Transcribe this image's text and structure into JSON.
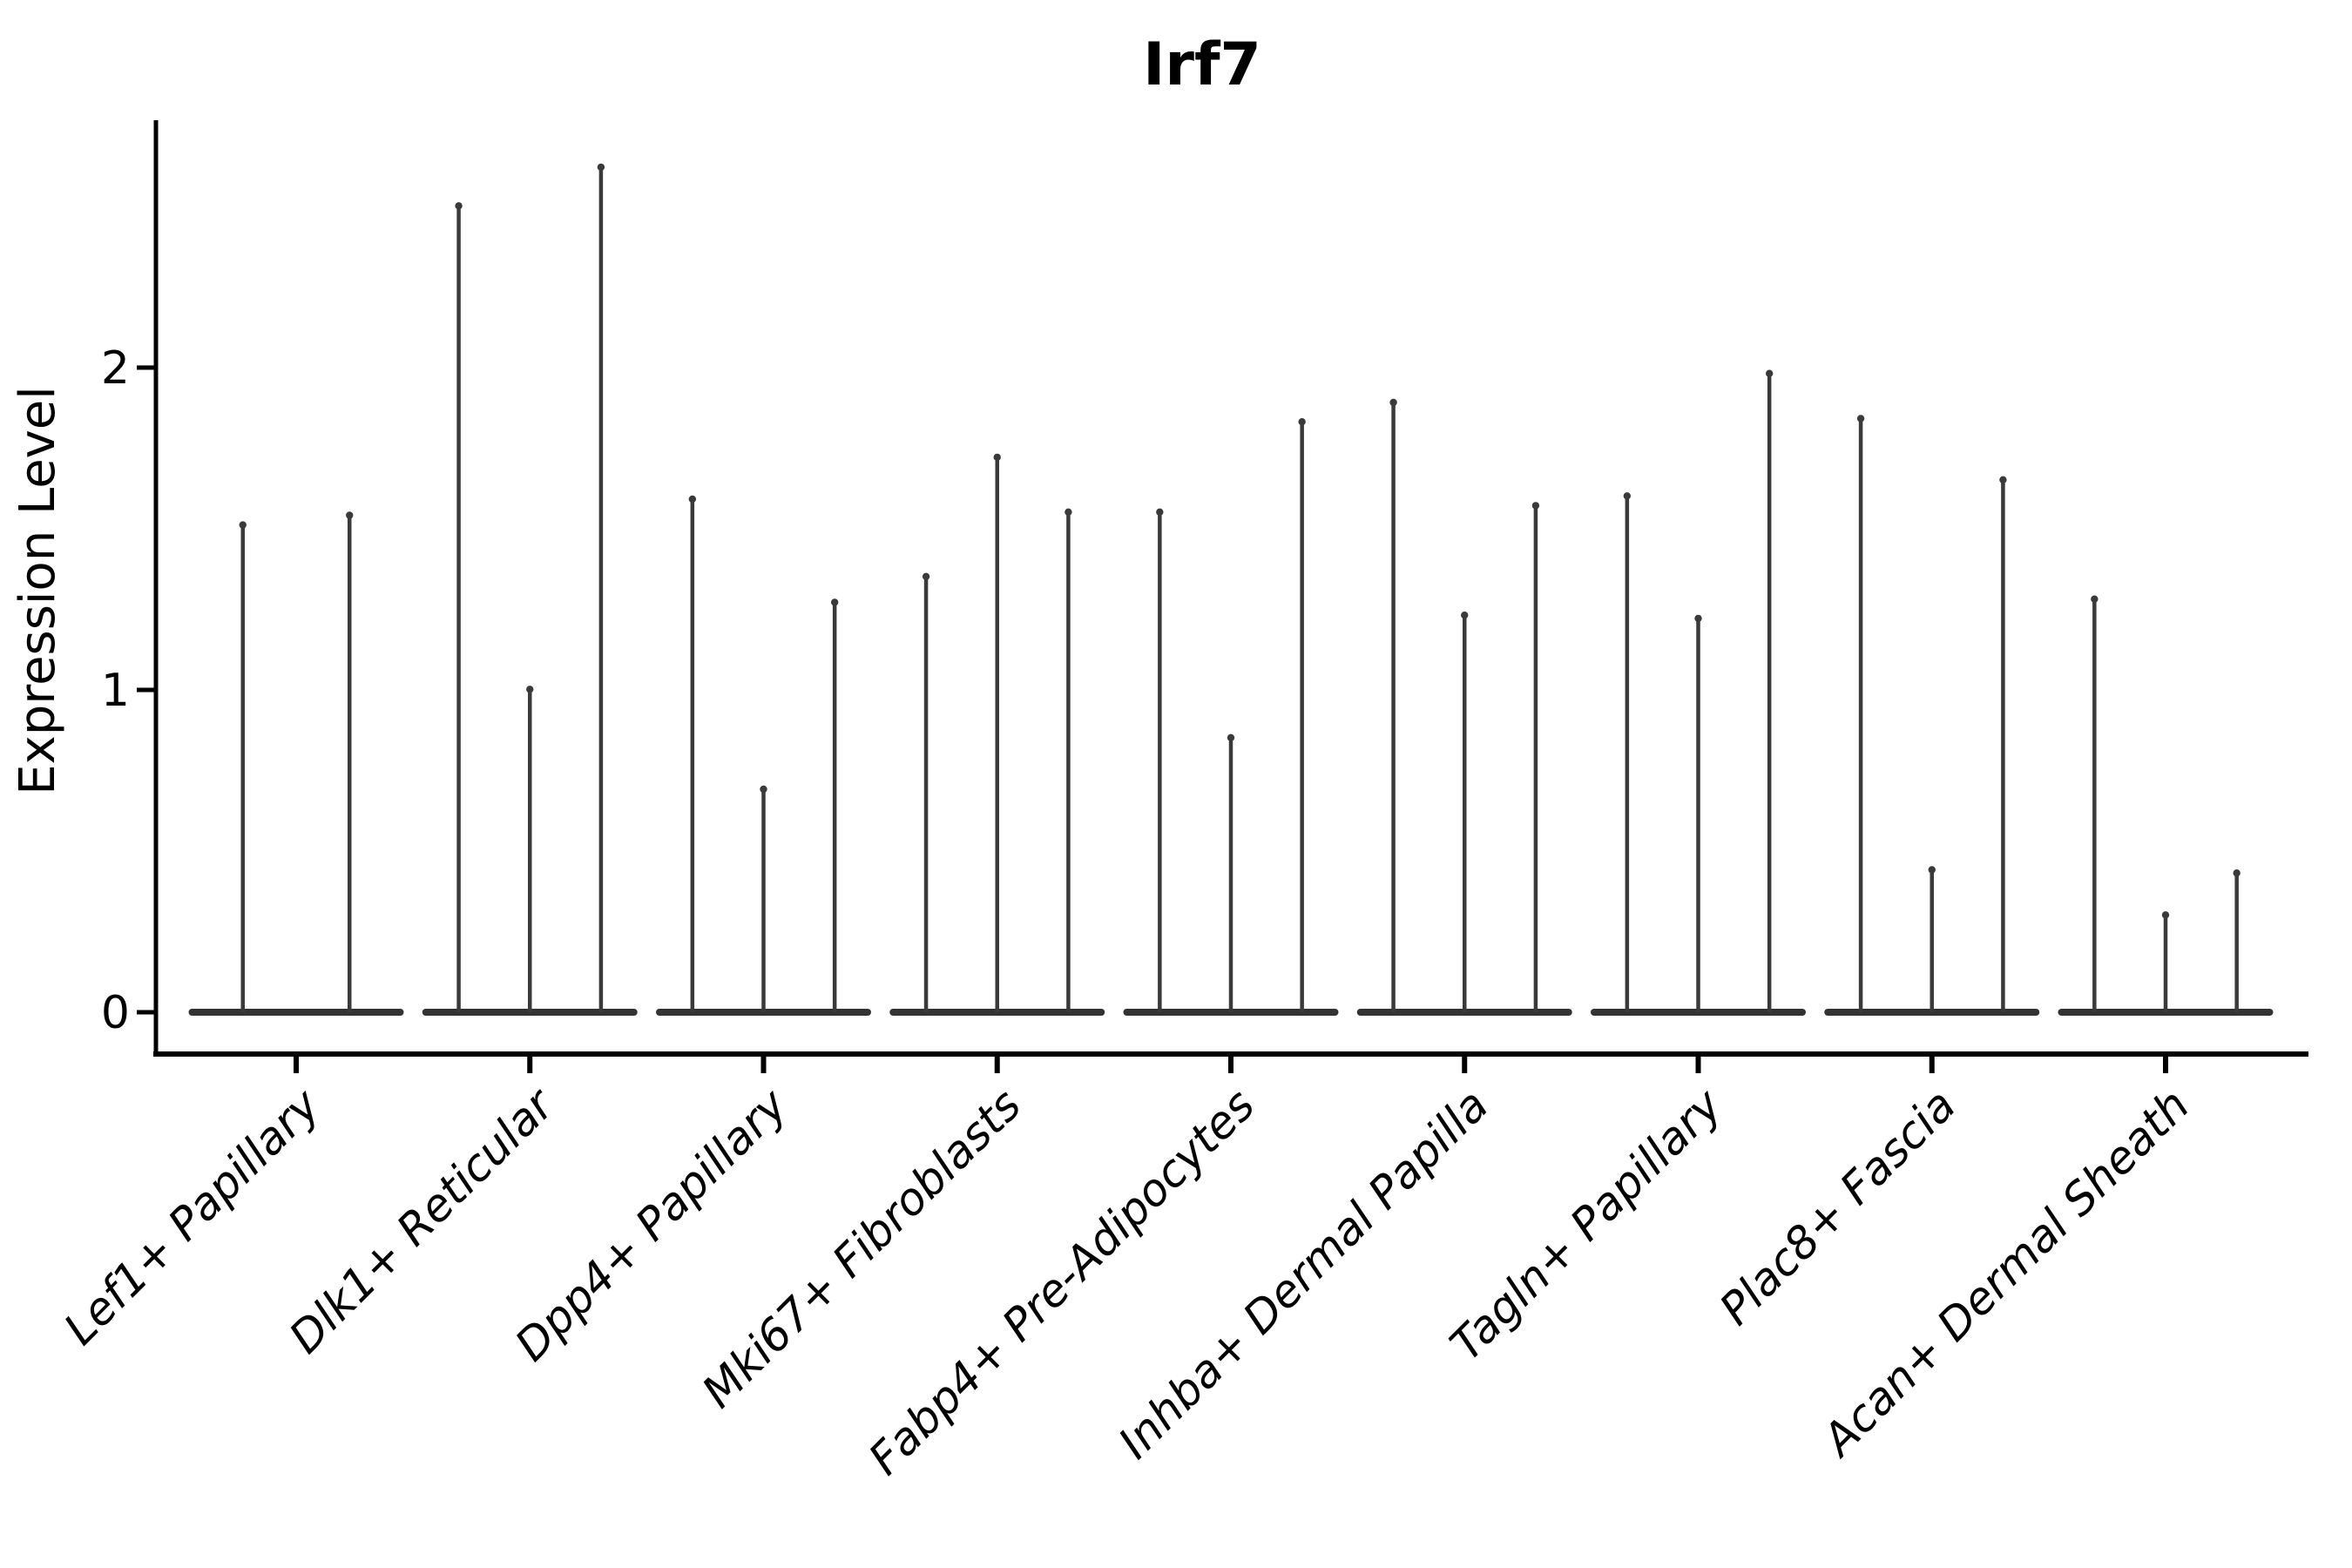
{
  "page": {
    "title": "Irf7"
  },
  "chart_data": {
    "type": "violin",
    "title": "Irf7",
    "xlabel": "",
    "ylabel": "Expression Level",
    "yticks": [
      0,
      1,
      2
    ],
    "ylim": [
      0,
      2.76
    ],
    "grid": false,
    "legend": "none",
    "x_tick_rotation_deg": 45,
    "categories": [
      "Lef1+ Papillary",
      "Dlk1+ Reticular",
      "Dpp4+ Papillary",
      "Mki67+ Fibroblasts",
      "Fabp4+ Pre-Adipocytes",
      "Inhba+ Dermal Papilla",
      "Tagln+ Papillary",
      "Plac8+ Fascia",
      "Acan+ Dermal Sheath"
    ],
    "violin_spike_values": [
      [
        1.52,
        1.55
      ],
      [
        2.51,
        1.01,
        2.63
      ],
      [
        1.6,
        0.7,
        1.28
      ],
      [
        1.36,
        1.73,
        1.56
      ],
      [
        1.56,
        0.86,
        1.84
      ],
      [
        1.9,
        1.24,
        1.58
      ],
      [
        1.61,
        1.23,
        1.99
      ],
      [
        1.85,
        0.45,
        1.66
      ],
      [
        1.29,
        0.31,
        0.44
      ]
    ],
    "colors": {
      "spike": "#3a3a3a",
      "baseline": "#333333",
      "axis": "#000000",
      "text": "#000000",
      "background": "#ffffff"
    }
  }
}
